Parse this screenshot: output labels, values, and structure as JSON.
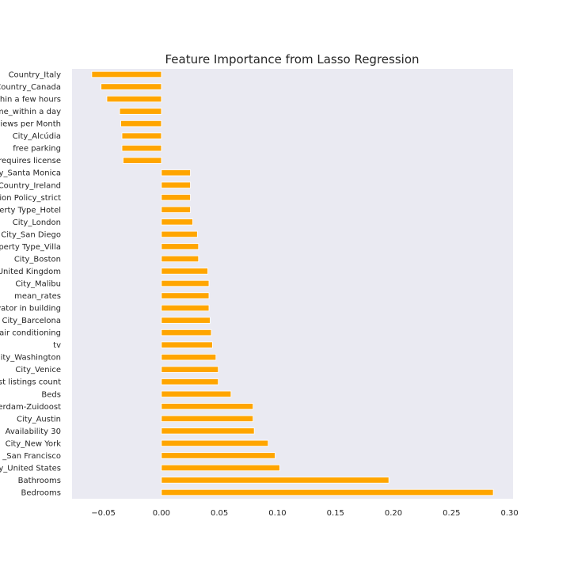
{
  "chart_data": {
    "type": "bar",
    "orientation": "horizontal",
    "title": "Feature Importance from Lasso Regression",
    "xlabel": "",
    "ylabel": "",
    "xlim": [
      -0.077,
      0.303
    ],
    "xticks": [
      -0.05,
      0.0,
      0.05,
      0.1,
      0.15,
      0.2,
      0.25,
      0.3
    ],
    "xtick_labels": [
      "−0.05",
      "0.00",
      "0.05",
      "0.10",
      "0.15",
      "0.20",
      "0.25",
      "0.30"
    ],
    "grid": false,
    "background": "#eaeaf2",
    "bar_color": "#ffa500",
    "categories": [
      "Country_Italy",
      "Country_Canada",
      "thin a few hours",
      "me_within a day",
      "views per Month",
      "City_Alcúdia",
      "free parking",
      "requires license",
      "y_Santa Monica",
      "Country_Ireland",
      "ion Policy_strict",
      "perty Type_Hotel",
      "City_London",
      "City_San Diego",
      "perty Type_Villa",
      "City_Boston",
      "United Kingdom",
      "City_Malibu",
      "mean_rates",
      "vator in building",
      "City_Barcelona",
      "air conditioning",
      "tv",
      "ity_Washington",
      "City_Venice",
      "ost listings count",
      "Beds",
      "erdam-Zuidoost",
      "City_Austin",
      "Availability 30",
      "City_New York",
      "_San Francisco",
      "y_United States",
      "Bathrooms",
      "Bedrooms"
    ],
    "values": [
      -0.06,
      -0.052,
      -0.047,
      -0.036,
      -0.035,
      -0.034,
      -0.034,
      -0.033,
      0.025,
      0.025,
      0.025,
      0.025,
      0.027,
      0.031,
      0.032,
      0.032,
      0.04,
      0.041,
      0.041,
      0.041,
      0.042,
      0.043,
      0.044,
      0.047,
      0.049,
      0.049,
      0.06,
      0.079,
      0.079,
      0.08,
      0.092,
      0.098,
      0.102,
      0.196,
      0.286
    ]
  }
}
